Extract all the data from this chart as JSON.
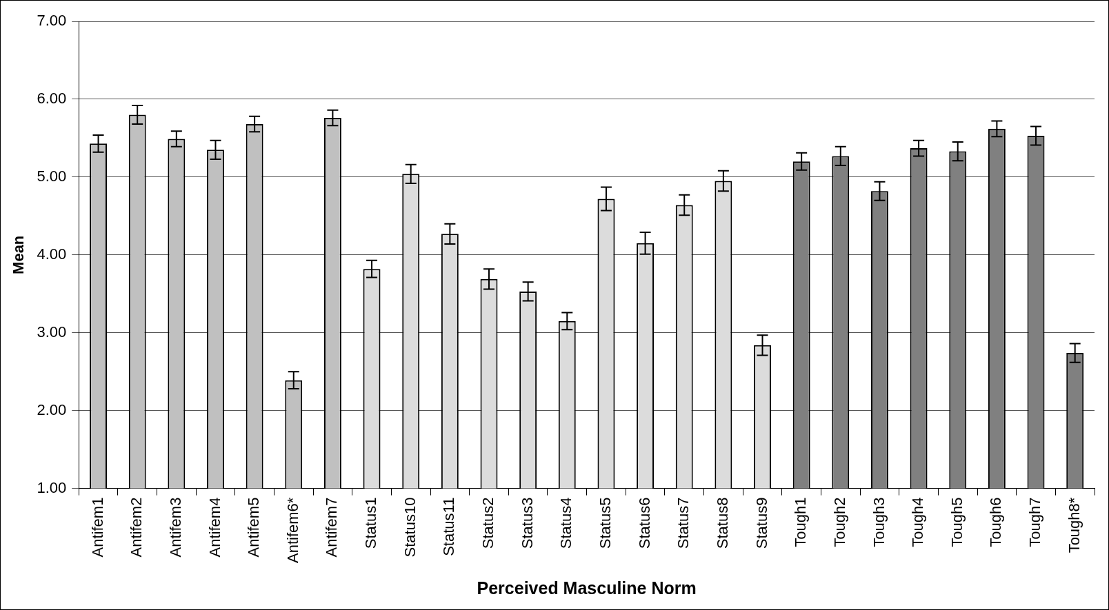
{
  "chart_data": {
    "type": "bar",
    "xlabel": "Perceived Masculine Norm",
    "ylabel": "Mean",
    "categories": [
      "Antifem1",
      "Antifem2",
      "Antifem3",
      "Antifem4",
      "Antifem5",
      "Antifem6*",
      "Antifem7",
      "Status1",
      "Status10",
      "Status11",
      "Status2",
      "Status3",
      "Status4",
      "Status5",
      "Status6",
      "Status7",
      "Status8",
      "Status9",
      "Tough1",
      "Tough2",
      "Tough3",
      "Tough4",
      "Tough5",
      "Tough6",
      "Tough7",
      "Tough8*"
    ],
    "values": [
      5.43,
      5.8,
      5.49,
      5.35,
      5.68,
      2.39,
      5.76,
      3.82,
      5.04,
      4.27,
      3.69,
      3.53,
      3.15,
      4.72,
      4.15,
      4.64,
      4.95,
      2.84,
      5.2,
      5.27,
      4.82,
      5.37,
      5.33,
      5.62,
      5.53,
      2.74
    ],
    "errors": [
      0.11,
      0.12,
      0.1,
      0.12,
      0.1,
      0.11,
      0.1,
      0.11,
      0.12,
      0.13,
      0.13,
      0.12,
      0.11,
      0.15,
      0.14,
      0.13,
      0.13,
      0.13,
      0.11,
      0.12,
      0.12,
      0.1,
      0.12,
      0.1,
      0.12,
      0.12
    ],
    "colors": [
      "#c0c0c0",
      "#c0c0c0",
      "#c0c0c0",
      "#c0c0c0",
      "#c0c0c0",
      "#c0c0c0",
      "#c0c0c0",
      "#dcdcdc",
      "#dcdcdc",
      "#dcdcdc",
      "#dcdcdc",
      "#dcdcdc",
      "#dcdcdc",
      "#dcdcdc",
      "#dcdcdc",
      "#dcdcdc",
      "#dcdcdc",
      "#dcdcdc",
      "#808080",
      "#808080",
      "#808080",
      "#808080",
      "#808080",
      "#808080",
      "#808080",
      "#808080"
    ],
    "ylim": [
      1,
      7
    ],
    "yticks": [
      {
        "value": 1,
        "label": "1.00"
      },
      {
        "value": 2,
        "label": "2.00"
      },
      {
        "value": 3,
        "label": "3.00"
      },
      {
        "value": 4,
        "label": "4.00"
      },
      {
        "value": 5,
        "label": "5.00"
      },
      {
        "value": 6,
        "label": "6.00"
      },
      {
        "value": 7,
        "label": "7.00"
      }
    ],
    "grid": "y",
    "legend": false
  }
}
